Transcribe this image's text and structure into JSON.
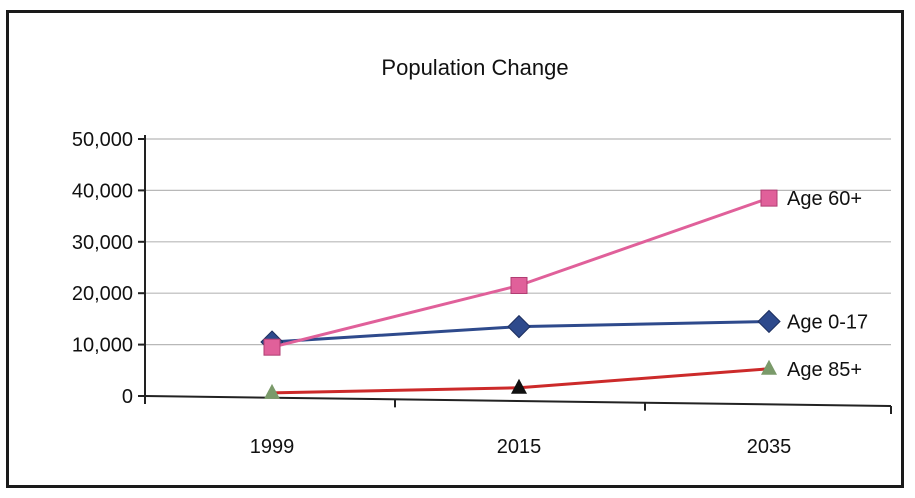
{
  "chart_data": {
    "type": "line",
    "title": "Population Change",
    "xlabel": "",
    "ylabel": "",
    "categories": [
      "1999",
      "2015",
      "2035"
    ],
    "ylim": [
      0,
      50000
    ],
    "y_ticks": [
      "0",
      "10,000",
      "20,000",
      "30,000",
      "40,000",
      "50,000"
    ],
    "grid": true,
    "legend": "none",
    "series": [
      {
        "name": "Age 0-17",
        "values": [
          10500,
          13500,
          14500
        ],
        "color": "#2e4a8c",
        "marker": "diamond",
        "marker_color": "#2e4a8c"
      },
      {
        "name": "Age 60+",
        "values": [
          9500,
          21500,
          38500
        ],
        "color": "#e0609a",
        "marker": "square",
        "marker_color": "#e0609a"
      },
      {
        "name": "Age 85+",
        "values": [
          600,
          1600,
          5300
        ],
        "color": "#cc2a2a",
        "marker": "triangle",
        "marker_colors": [
          "#7a9a6a",
          "#111111",
          "#7a9a6a"
        ]
      }
    ]
  }
}
